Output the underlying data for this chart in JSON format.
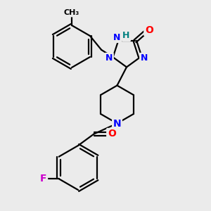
{
  "background_color": "#ebebeb",
  "atom_colors": {
    "O": "#ff0000",
    "N": "#0000ff",
    "H": "#008080",
    "F": "#cc00cc",
    "C": "#000000"
  },
  "bond_color": "#000000",
  "bond_width": 1.6
}
